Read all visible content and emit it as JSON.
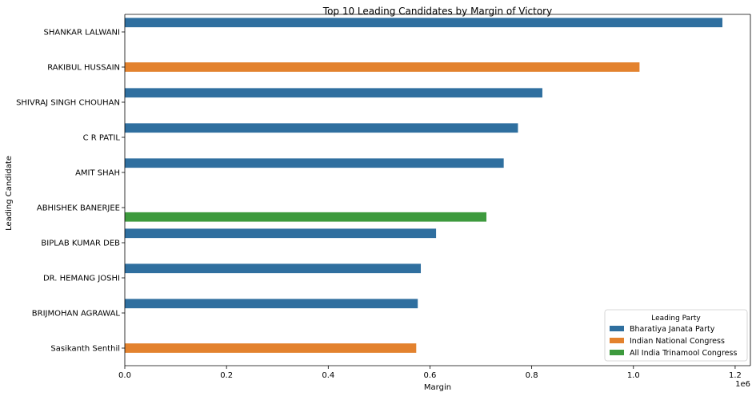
{
  "chart_data": {
    "type": "bar",
    "orientation": "horizontal",
    "title": "Top 10 Leading Candidates by Margin of Victory",
    "xlabel": "Margin",
    "ylabel": "Leading Candidate",
    "x_offset_label": "1e6",
    "xlim": [
      0,
      1230000
    ],
    "xticks": [
      0,
      200000,
      400000,
      600000,
      800000,
      1000000,
      1200000
    ],
    "xtick_labels": [
      "0.0",
      "0.2",
      "0.4",
      "0.6",
      "0.8",
      "1.0",
      "1.2"
    ],
    "grid": false,
    "legend": {
      "title": "Leading Party",
      "placement": "lower-right"
    },
    "series": [
      {
        "name": "Bharatiya Janata Party",
        "color": "#2f6f9f"
      },
      {
        "name": "Indian National Congress",
        "color": "#e3822e"
      },
      {
        "name": "All India Trinamool Congress",
        "color": "#3d9a3d"
      }
    ],
    "categories": [
      "SHANKAR LALWANI",
      "RAKIBUL HUSSAIN",
      "SHIVRAJ SINGH CHOUHAN",
      "C R PATIL",
      "AMIT SHAH",
      "ABHISHEK BANERJEE",
      "BIPLAB KUMAR DEB",
      "DR. HEMANG JOSHI",
      "BRIJMOHAN AGRAWAL",
      "Sasikanth Senthil"
    ],
    "bars": [
      {
        "category": "SHANKAR LALWANI",
        "party": "Bharatiya Janata Party",
        "value": 1175000
      },
      {
        "category": "RAKIBUL HUSSAIN",
        "party": "Indian National Congress",
        "value": 1012000
      },
      {
        "category": "SHIVRAJ SINGH CHOUHAN",
        "party": "Bharatiya Janata Party",
        "value": 821000
      },
      {
        "category": "C R PATIL",
        "party": "Bharatiya Janata Party",
        "value": 773000
      },
      {
        "category": "AMIT SHAH",
        "party": "Bharatiya Janata Party",
        "value": 745000
      },
      {
        "category": "ABHISHEK BANERJEE",
        "party": "All India Trinamool Congress",
        "value": 711000
      },
      {
        "category": "BIPLAB KUMAR DEB",
        "party": "Bharatiya Janata Party",
        "value": 612000
      },
      {
        "category": "DR. HEMANG JOSHI",
        "party": "Bharatiya Janata Party",
        "value": 582000
      },
      {
        "category": "BRIJMOHAN AGRAWAL",
        "party": "Bharatiya Janata Party",
        "value": 576000
      },
      {
        "category": "Sasikanth Senthil",
        "party": "Indian National Congress",
        "value": 573000
      }
    ]
  }
}
